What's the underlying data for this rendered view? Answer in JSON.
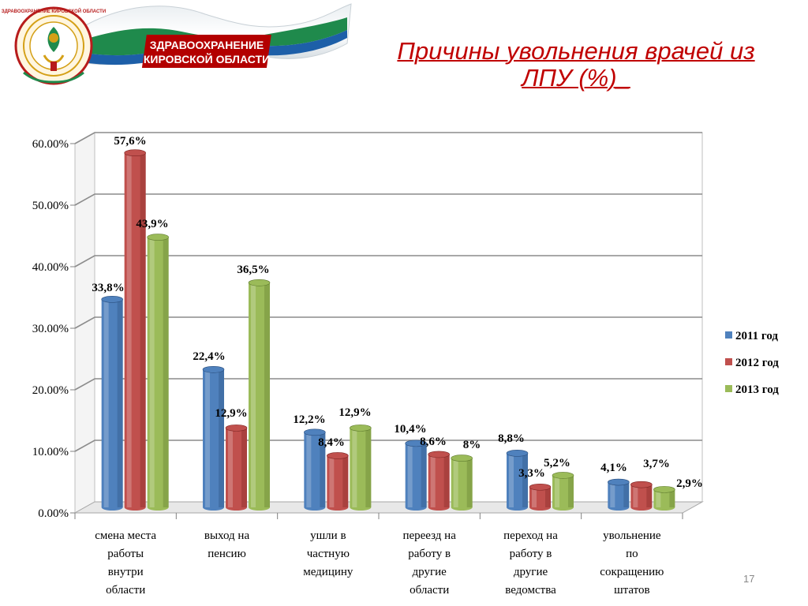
{
  "header": {
    "banner_line1": "ЗДРАВООХРАНЕНИЕ",
    "banner_line2": "КИРОВСКОЙ ОБЛАСТИ",
    "emblem_ring_text": "ЗДРАВООХРАНЕНИЕ КИРОВСКОЙ ОБЛАСТИ"
  },
  "title": {
    "line1": "Причины увольнения врачей из",
    "line2": "ЛПУ (%)_"
  },
  "slide_number": "17",
  "colors": {
    "title": "#c00000",
    "series_2011": "#4f81bd",
    "series_2012": "#c0504d",
    "series_2013": "#9bbb59",
    "banner_green": "#1f8a4c",
    "banner_blue": "#1d5fa8"
  },
  "chart_data": {
    "type": "bar",
    "categories": [
      "смена места работы внутри области",
      "выход на пенсию",
      "ушли в частную медицину",
      "переезд на работу в другие области",
      "переход на работу в другие ведомства",
      "увольнение по сокращению штатов"
    ],
    "category_lines": [
      [
        "смена места",
        "работы",
        "внутри",
        "области"
      ],
      [
        "выход на",
        "пенсию"
      ],
      [
        "ушли в",
        "частную",
        "медицину"
      ],
      [
        "переезд на",
        "работу в",
        "другие",
        "области"
      ],
      [
        "переход на",
        "работу в",
        "другие",
        "ведомства"
      ],
      [
        "увольнение",
        "по",
        "сокращению",
        "штатов"
      ]
    ],
    "series": [
      {
        "name": "2011 год",
        "values": [
          33.8,
          22.4,
          12.2,
          10.4,
          8.8,
          4.1
        ],
        "labels": [
          "33,8%",
          "22,4%",
          "12,2%",
          "10,4%",
          "8,8%",
          "4,1%"
        ]
      },
      {
        "name": "2012 год",
        "values": [
          57.6,
          12.9,
          8.4,
          8.6,
          3.3,
          3.7
        ],
        "labels": [
          "57,6%",
          "12,9%",
          "8,4%",
          "8,6%",
          "3,3%",
          "3,7%"
        ]
      },
      {
        "name": "2013 год",
        "values": [
          43.9,
          36.5,
          12.9,
          8,
          5.2,
          2.9
        ],
        "labels": [
          "43,9%",
          "36,5%",
          "12,9%",
          "8%",
          "5,2%",
          "2,9%"
        ]
      }
    ],
    "yticks": [
      "0.00%",
      "10.00%",
      "20.00%",
      "30.00%",
      "40.00%",
      "50.00%",
      "60.00%"
    ],
    "ylim": [
      0,
      60
    ],
    "grid": true,
    "legend": "right"
  }
}
